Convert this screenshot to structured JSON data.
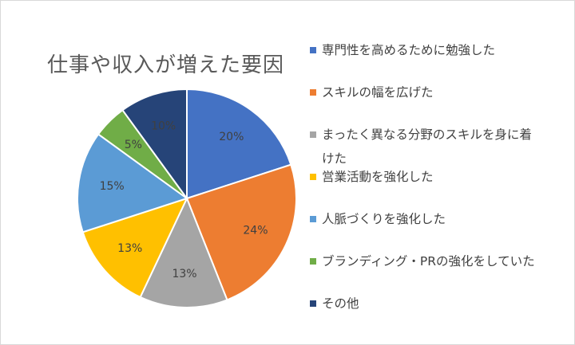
{
  "chart_data": {
    "type": "pie",
    "title": "仕事や収入が増えた要因",
    "categories": [
      "専門性を高めるために勉強した",
      "スキルの幅を広げた",
      "まったく異なる分野のスキルを身に着けた",
      "営業活動を強化した",
      "人脈づくりを強化した",
      "ブランディング・PRの強化をしていた",
      "その他"
    ],
    "values": [
      20,
      24,
      13,
      13,
      15,
      5,
      10
    ],
    "labels": [
      "20%",
      "24%",
      "13%",
      "13%",
      "15%",
      "5%",
      "10%"
    ],
    "colors": [
      "#4472C4",
      "#ED7D31",
      "#A5A5A5",
      "#FFC000",
      "#5B9BD5",
      "#70AD47",
      "#264478"
    ],
    "legend_position": "right"
  }
}
